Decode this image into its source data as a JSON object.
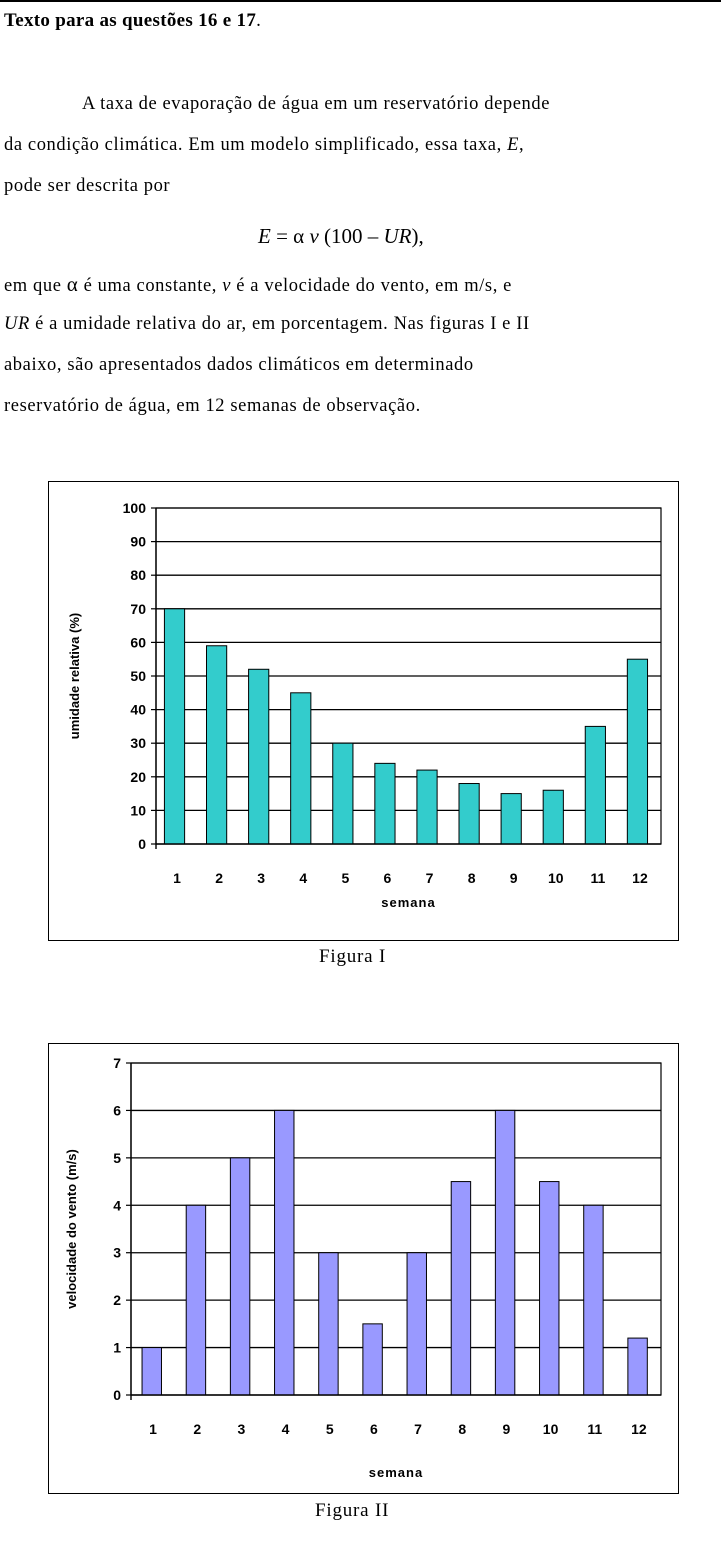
{
  "heading": {
    "bold_part": "Texto para as questões 16 e 17",
    "suffix": "."
  },
  "paragraph": {
    "line1": "A taxa de evaporação de água em um reservatório depende",
    "line2_a": "da condição climática. Em um modelo simplificado, essa taxa, ",
    "line2_var": "E",
    "line2_b": ",",
    "line3": "pode ser descrita por",
    "formula": {
      "lhs": "E",
      "eq": " = ",
      "alpha": "α",
      "v": "v",
      "paren": " (100 – ",
      "ur": "UR",
      "close": "),"
    },
    "line4_a": "em que ",
    "line4_alpha": "α",
    "line4_b": " é uma constante, ",
    "line4_v": "v",
    "line4_c": " é a velocidade do vento, em m/s, e",
    "line5_ur": "UR",
    "line5_a": " é a umidade relativa do ar, em porcentagem. Nas figuras I e II",
    "line6": "abaixo,   são   apresentados   dados   climáticos   em   determinado",
    "line7": "reservatório de água, em 12 semanas de observação."
  },
  "figure1": {
    "caption": "Figura I",
    "colors": {
      "bar": "#33cccc"
    }
  },
  "figure2": {
    "caption": "Figura II",
    "colors": {
      "bar": "#9999ff"
    }
  },
  "chart_data": [
    {
      "type": "bar",
      "categories": [
        "1",
        "2",
        "3",
        "4",
        "5",
        "6",
        "7",
        "8",
        "9",
        "10",
        "11",
        "12"
      ],
      "values": [
        70,
        59,
        52,
        45,
        30,
        24,
        22,
        18,
        15,
        16,
        35,
        55
      ],
      "xlabel": "semana",
      "ylabel": "umidade relativa (%)",
      "ylim": [
        0,
        100
      ],
      "yticks": [
        "0",
        "10",
        "20",
        "30",
        "40",
        "50",
        "60",
        "70",
        "80",
        "90",
        "100"
      ],
      "grid": true,
      "bar_color": "#33cccc"
    },
    {
      "type": "bar",
      "categories": [
        "1",
        "2",
        "3",
        "4",
        "5",
        "6",
        "7",
        "8",
        "9",
        "10",
        "11",
        "12"
      ],
      "values": [
        1,
        4,
        5,
        6,
        3,
        1.5,
        3,
        4.5,
        6,
        4.5,
        4,
        1.2
      ],
      "xlabel": "semana",
      "ylabel": "velocidade do vento (m/s)",
      "ylim": [
        0,
        7
      ],
      "yticks": [
        "0",
        "1",
        "2",
        "3",
        "4",
        "5",
        "6",
        "7"
      ],
      "grid": true,
      "bar_color": "#9999ff"
    }
  ]
}
